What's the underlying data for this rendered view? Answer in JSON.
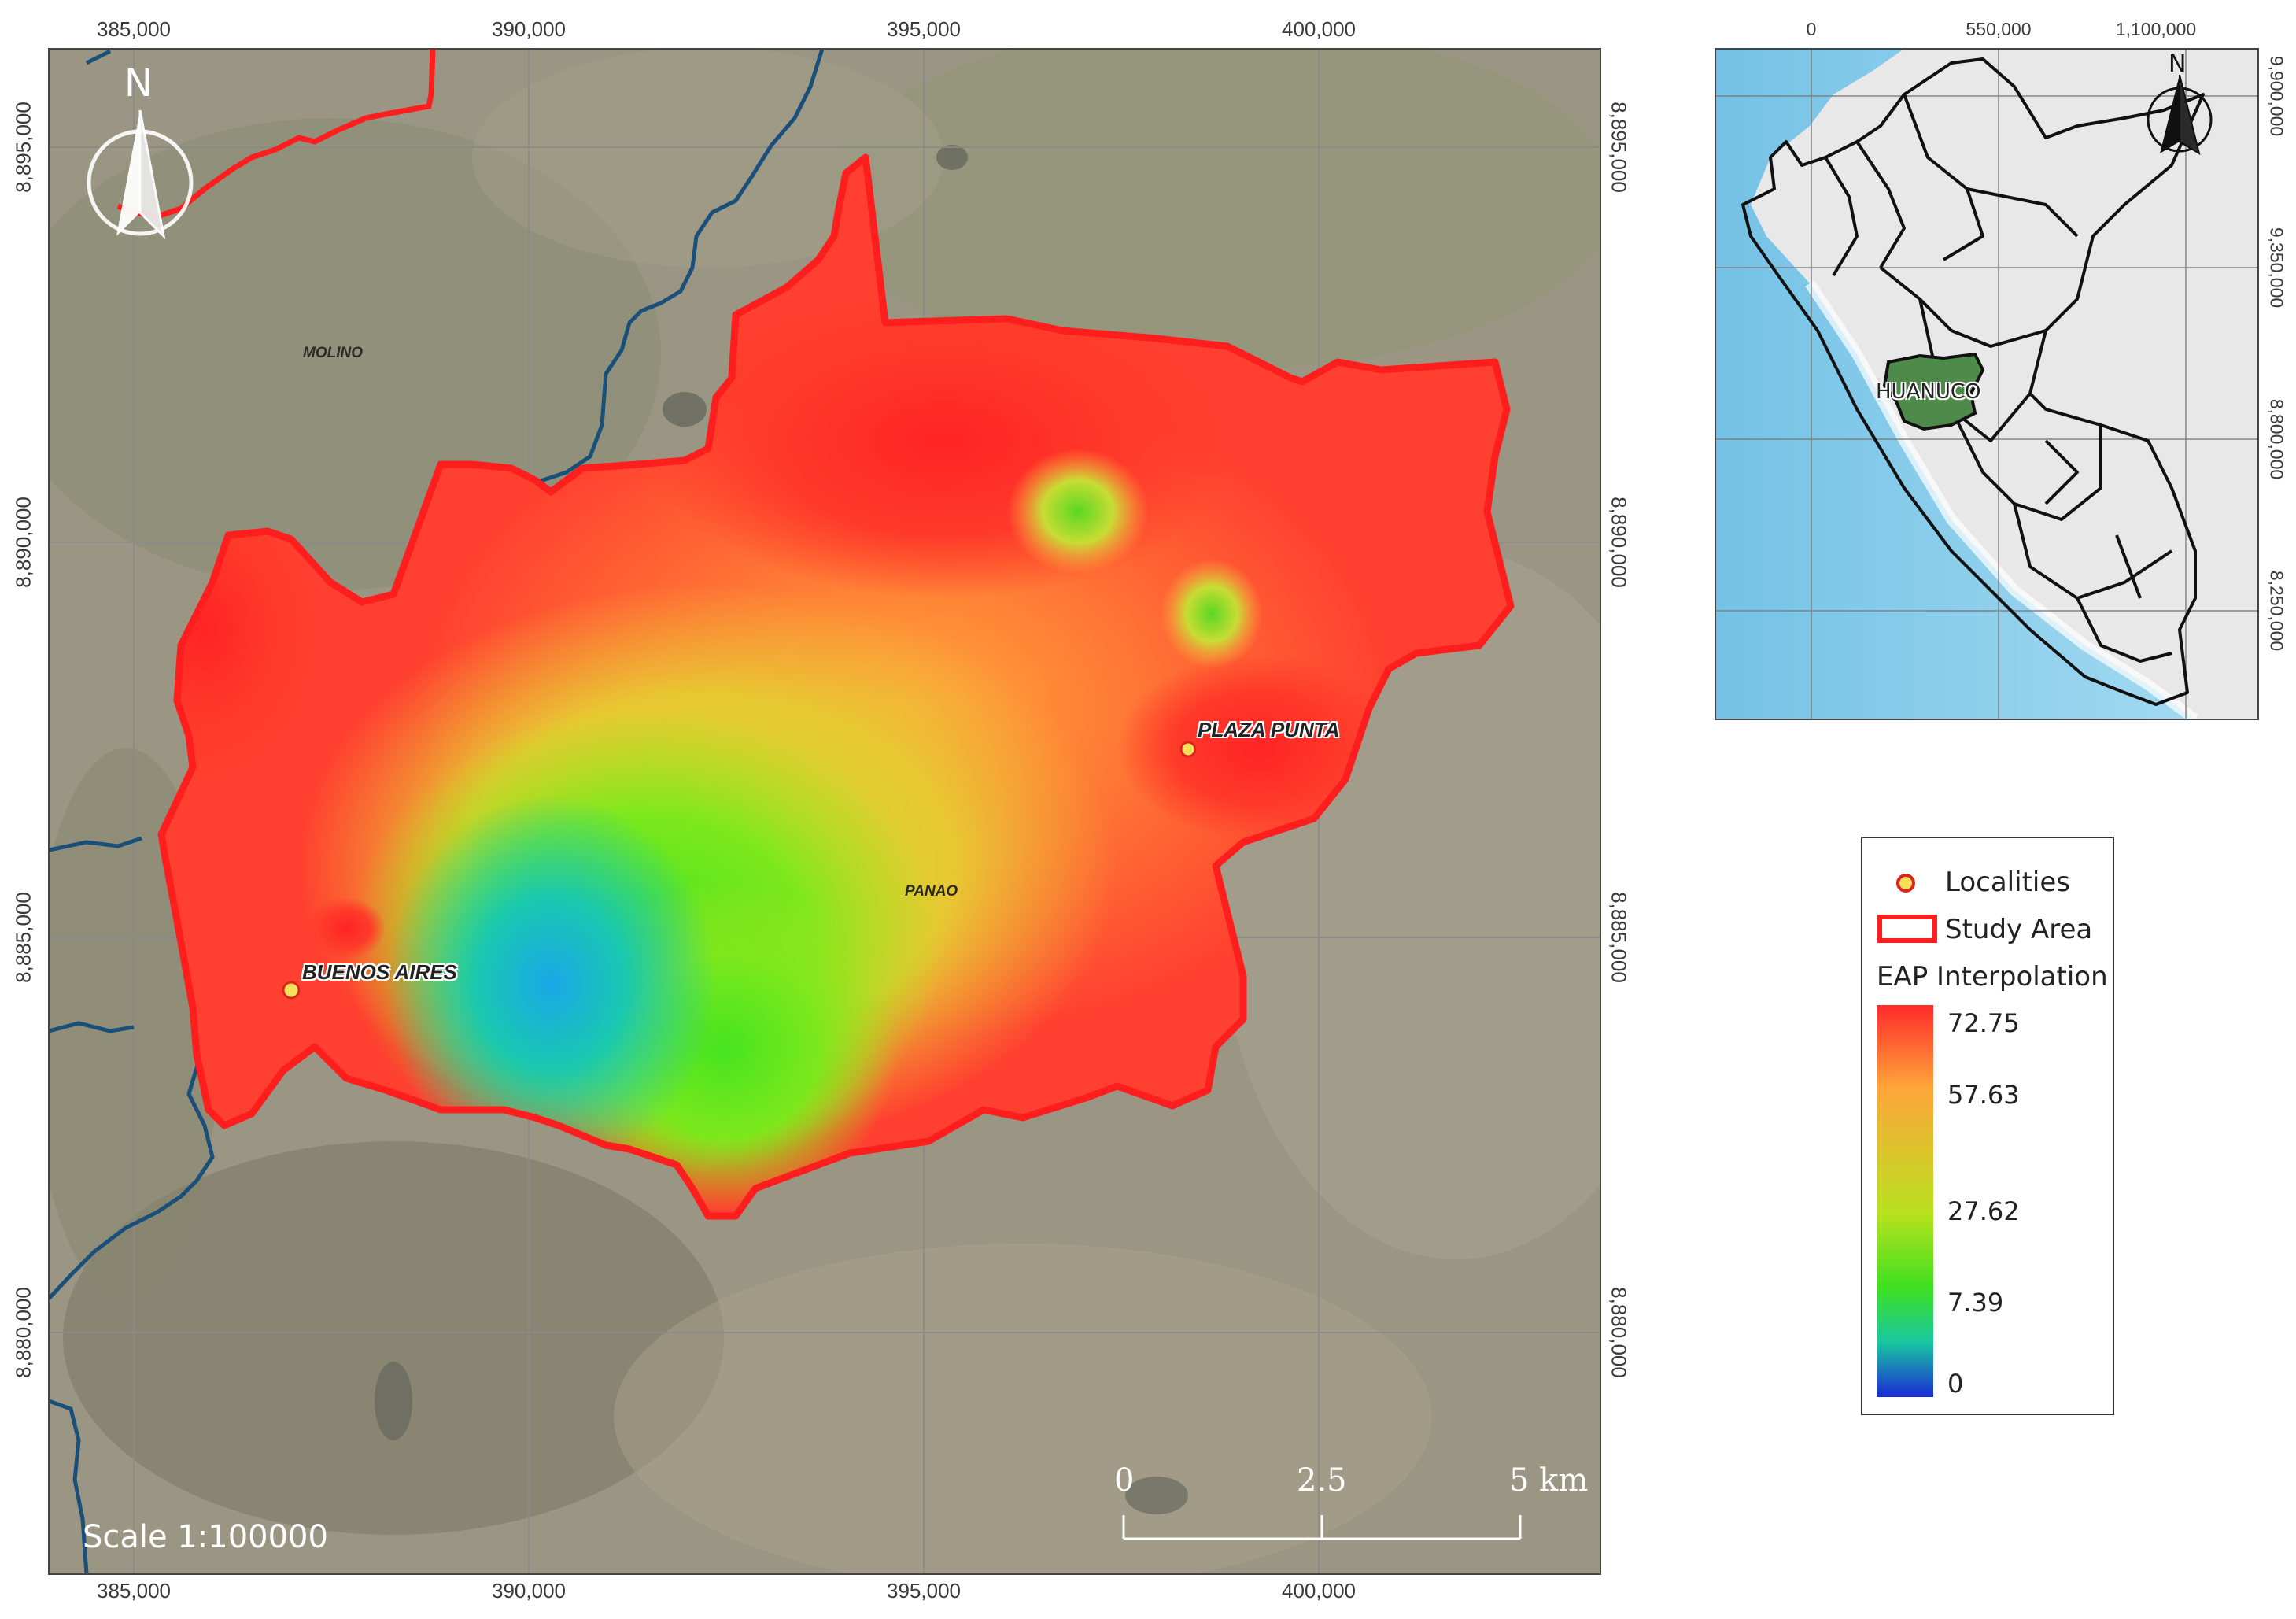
{
  "main_map": {
    "x_ticks": [
      "385,000",
      "390,000",
      "395,000",
      "400,000"
    ],
    "y_ticks": [
      "8,895,000",
      "8,890,000",
      "8,885,000",
      "8,880,000"
    ],
    "north_arrow_label": "N",
    "scale_text": "Scale 1:100000",
    "scalebar_labels": [
      "0",
      "2.5",
      "5 km"
    ],
    "place_labels": {
      "molino": "MOLINO",
      "panao": "PANAO",
      "plaza_punta": "PLAZA PUNTA",
      "buenos_aires": "BUENOS AIRES"
    }
  },
  "inset_map": {
    "x_ticks": [
      "0",
      "550,000",
      "1,100,000"
    ],
    "y_ticks": [
      "9,900,000",
      "9,350,000",
      "8,800,000",
      "8,250,000"
    ],
    "north_arrow_label": "N",
    "region_label": "HUANUCO"
  },
  "legend": {
    "localities_label": "Localities",
    "study_area_label": "Study Area",
    "interpolation_title": "EAP Interpolation",
    "ramp_values": [
      "72.75",
      "57.63",
      "27.62",
      "7.39",
      "0"
    ]
  },
  "colors": {
    "study_area_outline": "#ff1e1e",
    "rivers": "#1a4f7a",
    "ramp_high": "#ff2a2a",
    "ramp_mid_high": "#ffa53a",
    "ramp_mid": "#b9e11e",
    "ramp_low": "#19c8a0",
    "ramp_zero": "#1a2ad6",
    "huanuco_fill": "#4e8a4a",
    "ocean": "#7cc6e8"
  }
}
